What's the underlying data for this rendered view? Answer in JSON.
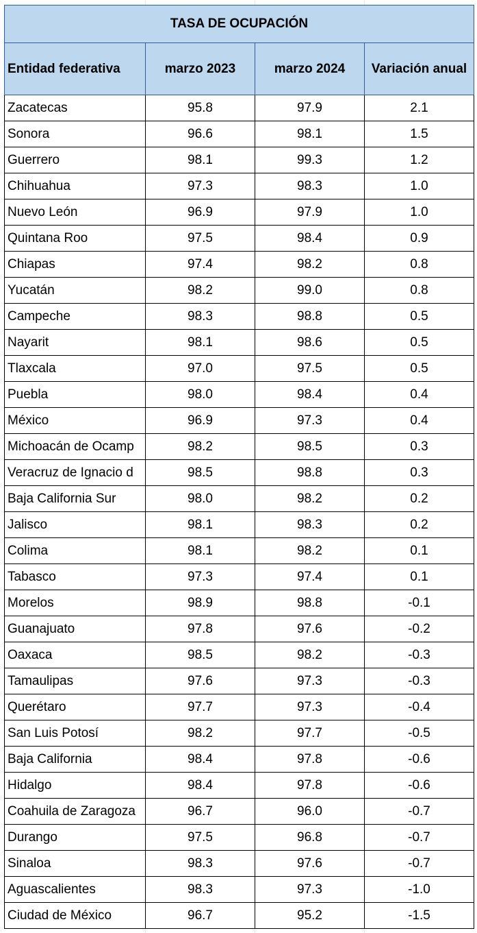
{
  "title": "TASA DE OCUPACIÓN",
  "headers": [
    "Entidad federativa",
    "marzo 2023",
    "marzo 2024",
    "Variación anual"
  ],
  "colors": {
    "header_fill": "#bdd7ee",
    "header_border": "#2e5b9a"
  },
  "rows": [
    [
      "Zacatecas",
      "95.8",
      "97.9",
      "2.1"
    ],
    [
      "Sonora",
      "96.6",
      "98.1",
      "1.5"
    ],
    [
      "Guerrero",
      "98.1",
      "99.3",
      "1.2"
    ],
    [
      "Chihuahua",
      "97.3",
      "98.3",
      "1.0"
    ],
    [
      "Nuevo León",
      "96.9",
      "97.9",
      "1.0"
    ],
    [
      "Quintana Roo",
      "97.5",
      "98.4",
      "0.9"
    ],
    [
      "Chiapas",
      "97.4",
      "98.2",
      "0.8"
    ],
    [
      "Yucatán",
      "98.2",
      "99.0",
      "0.8"
    ],
    [
      "Campeche",
      "98.3",
      "98.8",
      "0.5"
    ],
    [
      "Nayarit",
      "98.1",
      "98.6",
      "0.5"
    ],
    [
      "Tlaxcala",
      "97.0",
      "97.5",
      "0.5"
    ],
    [
      "Puebla",
      "98.0",
      "98.4",
      "0.4"
    ],
    [
      "México",
      "96.9",
      "97.3",
      "0.4"
    ],
    [
      "Michoacán de Ocamp",
      "98.2",
      "98.5",
      "0.3"
    ],
    [
      "Veracruz de Ignacio d",
      "98.5",
      "98.8",
      "0.3"
    ],
    [
      "Baja California Sur",
      "98.0",
      "98.2",
      "0.2"
    ],
    [
      "Jalisco",
      "98.1",
      "98.3",
      "0.2"
    ],
    [
      "Colima",
      "98.1",
      "98.2",
      "0.1"
    ],
    [
      "Tabasco",
      "97.3",
      "97.4",
      "0.1"
    ],
    [
      "Morelos",
      "98.9",
      "98.8",
      "-0.1"
    ],
    [
      "Guanajuato",
      "97.8",
      "97.6",
      "-0.2"
    ],
    [
      "Oaxaca",
      "98.5",
      "98.2",
      "-0.3"
    ],
    [
      "Tamaulipas",
      "97.6",
      "97.3",
      "-0.3"
    ],
    [
      "Querétaro",
      "97.7",
      "97.3",
      "-0.4"
    ],
    [
      "San Luis Potosí",
      "98.2",
      "97.7",
      "-0.5"
    ],
    [
      "Baja California",
      "98.4",
      "97.8",
      "-0.6"
    ],
    [
      "Hidalgo",
      "98.4",
      "97.8",
      "-0.6"
    ],
    [
      "Coahuila de Zaragoza",
      "96.7",
      "96.0",
      "-0.7"
    ],
    [
      "Durango",
      "97.5",
      "96.8",
      "-0.7"
    ],
    [
      "Sinaloa",
      "98.3",
      "97.6",
      "-0.7"
    ],
    [
      "Aguascalientes",
      "98.3",
      "97.3",
      "-1.0"
    ],
    [
      "Ciudad de México",
      "96.7",
      "95.2",
      "-1.5"
    ]
  ]
}
